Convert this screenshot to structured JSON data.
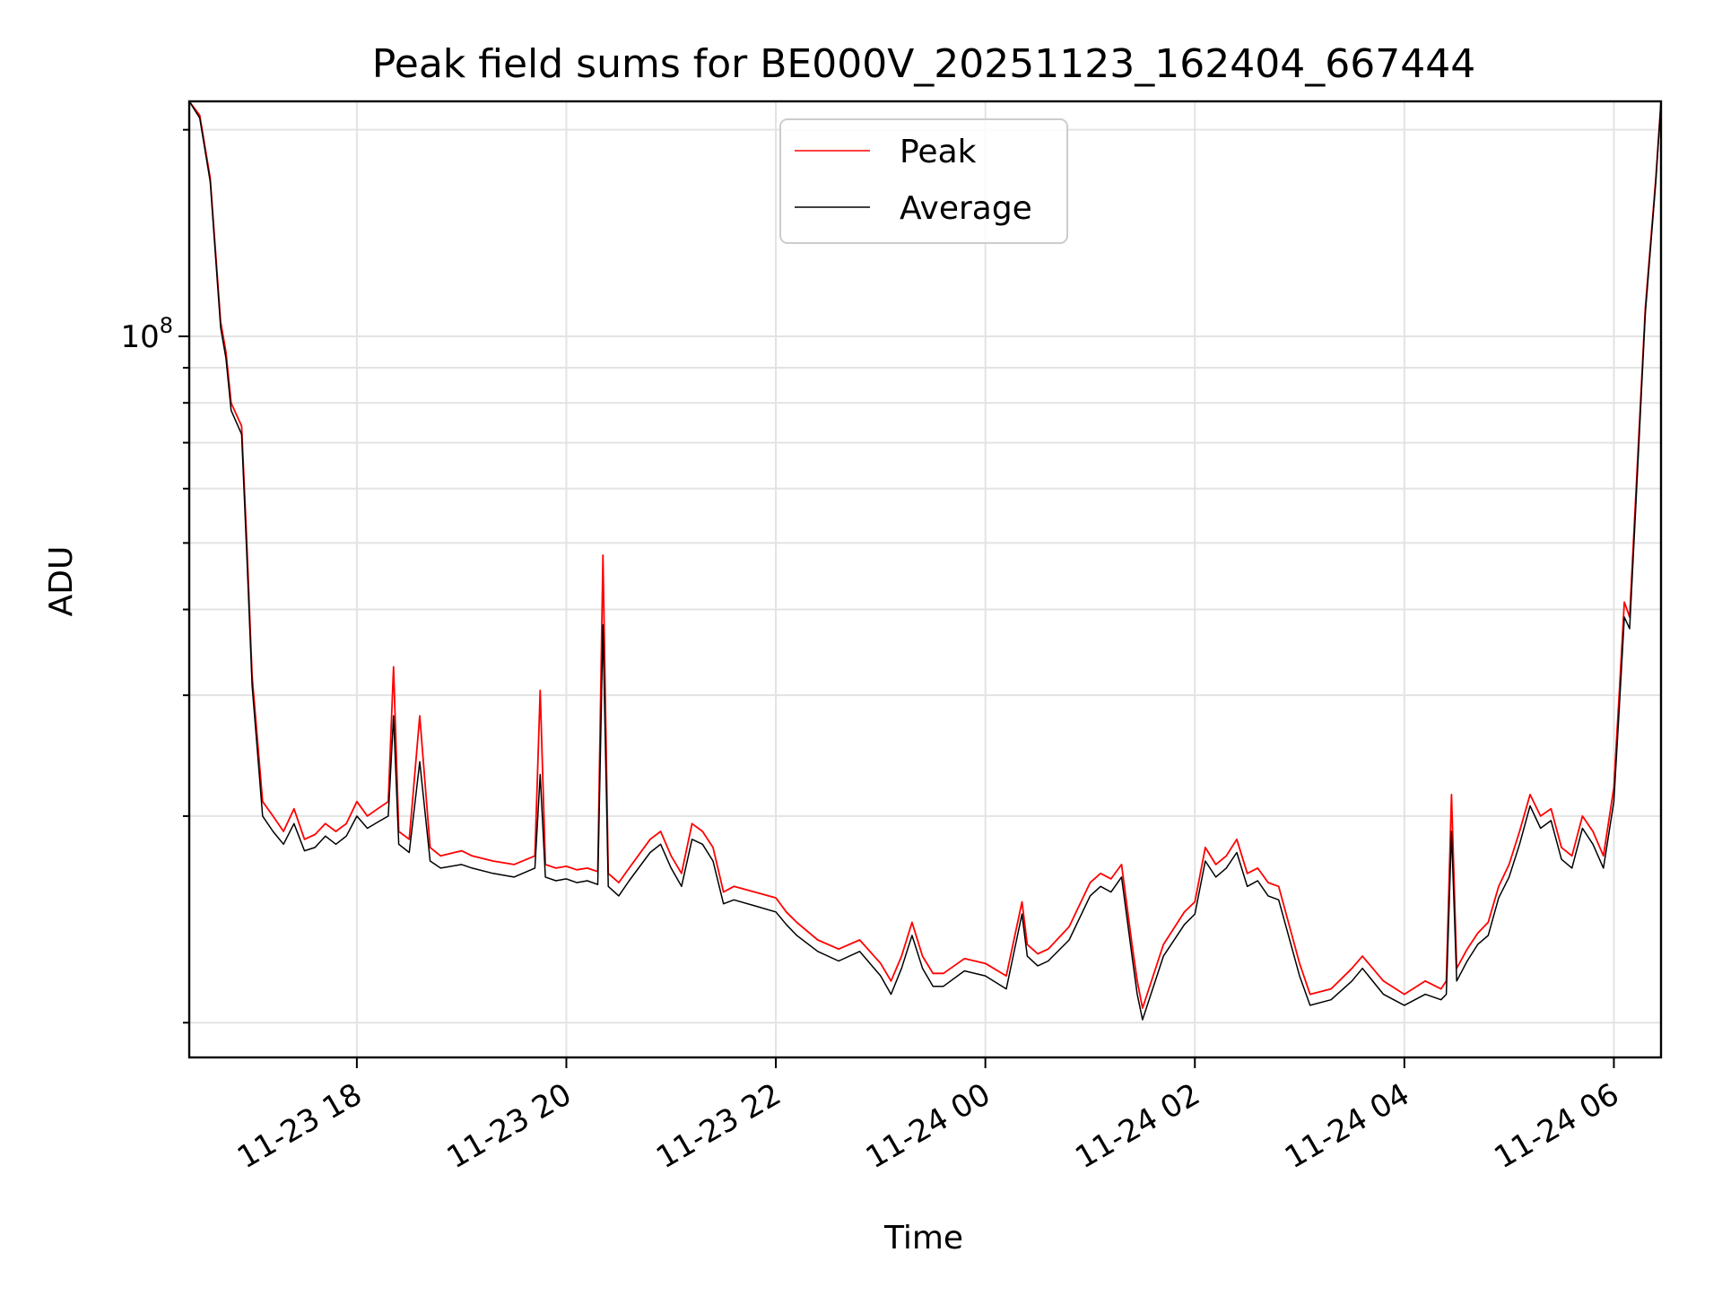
{
  "chart_data": {
    "type": "line",
    "title": "Peak field sums for BE000V_20251123_162404_667444",
    "xlabel": "Time",
    "ylabel": "ADU",
    "yscale": "log",
    "ylim": [
      8900000,
      220000000
    ],
    "x_unit": "hours since 11-23 00:00",
    "xlim": [
      16.4,
      30.45
    ],
    "x_ticks": [
      {
        "value": 18,
        "label": "11-23 18"
      },
      {
        "value": 20,
        "label": "11-23 20"
      },
      {
        "value": 22,
        "label": "11-23 22"
      },
      {
        "value": 24,
        "label": "11-24 00"
      },
      {
        "value": 26,
        "label": "11-24 02"
      },
      {
        "value": 28,
        "label": "11-24 04"
      },
      {
        "value": 30,
        "label": "11-24 06"
      }
    ],
    "y_ticks": [
      {
        "value": 100000000,
        "base": "10",
        "exp": "8"
      }
    ],
    "y_minor_ticks": [
      10000000,
      20000000,
      30000000,
      40000000,
      50000000,
      60000000,
      70000000,
      80000000,
      90000000,
      200000000
    ],
    "grid": true,
    "legend": {
      "position": "upper-center",
      "entries": [
        "Peak",
        "Average"
      ]
    },
    "series_colors": {
      "Peak": "#ff0000",
      "Average": "#000000"
    },
    "series": [
      {
        "name": "Peak",
        "x": [
          16.4,
          16.5,
          16.6,
          16.7,
          16.75,
          16.8,
          16.9,
          16.95,
          17.0,
          17.05,
          17.1,
          17.2,
          17.3,
          17.4,
          17.5,
          17.6,
          17.7,
          17.8,
          17.9,
          18.0,
          18.1,
          18.2,
          18.3,
          18.35,
          18.4,
          18.5,
          18.6,
          18.7,
          18.8,
          19.0,
          19.1,
          19.3,
          19.5,
          19.7,
          19.75,
          19.8,
          19.9,
          20.0,
          20.1,
          20.2,
          20.3,
          20.35,
          20.4,
          20.5,
          20.6,
          20.8,
          20.9,
          21.0,
          21.1,
          21.2,
          21.3,
          21.4,
          21.5,
          21.6,
          21.8,
          22.0,
          22.1,
          22.2,
          22.4,
          22.6,
          22.8,
          23.0,
          23.1,
          23.2,
          23.3,
          23.4,
          23.5,
          23.6,
          23.8,
          24.0,
          24.2,
          24.35,
          24.4,
          24.5,
          24.6,
          24.8,
          25.0,
          25.1,
          25.2,
          25.3,
          25.4,
          25.45,
          25.5,
          25.7,
          25.9,
          26.0,
          26.1,
          26.2,
          26.3,
          26.4,
          26.5,
          26.6,
          26.7,
          26.8,
          27.0,
          27.1,
          27.3,
          27.5,
          27.6,
          27.8,
          28.0,
          28.2,
          28.35,
          28.4,
          28.45,
          28.5,
          28.6,
          28.7,
          28.8,
          28.9,
          29.0,
          29.1,
          29.2,
          29.3,
          29.4,
          29.5,
          29.6,
          29.7,
          29.8,
          29.9,
          30.0,
          30.05,
          30.1,
          30.15,
          30.2,
          30.3,
          30.4,
          30.45
        ],
        "values": [
          220000000,
          210000000,
          170000000,
          105000000,
          95000000,
          80000000,
          74000000,
          50000000,
          32000000,
          26000000,
          21000000,
          20000000,
          19000000,
          20500000,
          18500000,
          18800000,
          19500000,
          19000000,
          19500000,
          21000000,
          20000000,
          20500000,
          21000000,
          33000000,
          19000000,
          18500000,
          28000000,
          18000000,
          17500000,
          17800000,
          17500000,
          17200000,
          17000000,
          17500000,
          30500000,
          17000000,
          16800000,
          16900000,
          16700000,
          16800000,
          16600000,
          48000000,
          16500000,
          16000000,
          16800000,
          18500000,
          19000000,
          17500000,
          16500000,
          19500000,
          19000000,
          18000000,
          15500000,
          15800000,
          15500000,
          15200000,
          14500000,
          14000000,
          13200000,
          12800000,
          13200000,
          12200000,
          11500000,
          12500000,
          14000000,
          12500000,
          11800000,
          11800000,
          12400000,
          12200000,
          11700000,
          15000000,
          13000000,
          12600000,
          12800000,
          13800000,
          16000000,
          16500000,
          16200000,
          17000000,
          13000000,
          11500000,
          10500000,
          13000000,
          14500000,
          15000000,
          18000000,
          17000000,
          17500000,
          18500000,
          16500000,
          16800000,
          16000000,
          15800000,
          12200000,
          11000000,
          11200000,
          12000000,
          12500000,
          11500000,
          11000000,
          11500000,
          11200000,
          11500000,
          21500000,
          12000000,
          12800000,
          13500000,
          14000000,
          15800000,
          17000000,
          19000000,
          21500000,
          20000000,
          20500000,
          18000000,
          17500000,
          20000000,
          19000000,
          17500000,
          22000000,
          30000000,
          41000000,
          39000000,
          55000000,
          110000000,
          170000000,
          220000000
        ]
      },
      {
        "name": "Average",
        "x": [
          16.4,
          16.5,
          16.6,
          16.7,
          16.75,
          16.8,
          16.9,
          16.95,
          17.0,
          17.05,
          17.1,
          17.2,
          17.3,
          17.4,
          17.5,
          17.6,
          17.7,
          17.8,
          17.9,
          18.0,
          18.1,
          18.2,
          18.3,
          18.35,
          18.4,
          18.5,
          18.6,
          18.7,
          18.8,
          19.0,
          19.1,
          19.3,
          19.5,
          19.7,
          19.75,
          19.8,
          19.9,
          20.0,
          20.1,
          20.2,
          20.3,
          20.35,
          20.4,
          20.5,
          20.6,
          20.8,
          20.9,
          21.0,
          21.1,
          21.2,
          21.3,
          21.4,
          21.5,
          21.6,
          21.8,
          22.0,
          22.1,
          22.2,
          22.4,
          22.6,
          22.8,
          23.0,
          23.1,
          23.2,
          23.3,
          23.4,
          23.5,
          23.6,
          23.8,
          24.0,
          24.2,
          24.35,
          24.4,
          24.5,
          24.6,
          24.8,
          25.0,
          25.1,
          25.2,
          25.3,
          25.4,
          25.45,
          25.5,
          25.7,
          25.9,
          26.0,
          26.1,
          26.2,
          26.3,
          26.4,
          26.5,
          26.6,
          26.7,
          26.8,
          27.0,
          27.1,
          27.3,
          27.5,
          27.6,
          27.8,
          28.0,
          28.2,
          28.35,
          28.4,
          28.45,
          28.5,
          28.6,
          28.7,
          28.8,
          28.9,
          29.0,
          29.1,
          29.2,
          29.3,
          29.4,
          29.5,
          29.6,
          29.7,
          29.8,
          29.9,
          30.0,
          30.05,
          30.1,
          30.15,
          30.2,
          30.3,
          30.4,
          30.45
        ],
        "values": [
          220000000,
          208000000,
          168000000,
          103000000,
          93000000,
          78000000,
          72000000,
          48000000,
          31000000,
          25000000,
          20000000,
          19000000,
          18200000,
          19500000,
          17800000,
          18000000,
          18700000,
          18200000,
          18700000,
          20000000,
          19200000,
          19600000,
          20000000,
          28000000,
          18200000,
          17700000,
          24000000,
          17200000,
          16800000,
          17000000,
          16800000,
          16500000,
          16300000,
          16800000,
          23000000,
          16300000,
          16100000,
          16200000,
          16000000,
          16100000,
          15900000,
          38000000,
          15800000,
          15300000,
          16100000,
          17700000,
          18200000,
          16800000,
          15800000,
          18500000,
          18200000,
          17200000,
          14900000,
          15100000,
          14800000,
          14500000,
          13900000,
          13400000,
          12700000,
          12300000,
          12700000,
          11700000,
          11000000,
          12000000,
          13400000,
          12000000,
          11300000,
          11300000,
          11900000,
          11700000,
          11200000,
          14400000,
          12500000,
          12100000,
          12300000,
          13200000,
          15300000,
          15800000,
          15500000,
          16300000,
          12500000,
          11000000,
          10100000,
          12500000,
          13900000,
          14400000,
          17200000,
          16300000,
          16800000,
          17700000,
          15800000,
          16100000,
          15300000,
          15100000,
          11700000,
          10600000,
          10800000,
          11500000,
          12000000,
          11000000,
          10600000,
          11000000,
          10800000,
          11000000,
          19000000,
          11500000,
          12300000,
          13000000,
          13400000,
          15200000,
          16300000,
          18200000,
          20700000,
          19200000,
          19700000,
          17300000,
          16800000,
          19200000,
          18200000,
          16800000,
          21000000,
          28500000,
          39000000,
          37500000,
          53000000,
          108000000,
          168000000,
          220000000
        ]
      }
    ]
  }
}
